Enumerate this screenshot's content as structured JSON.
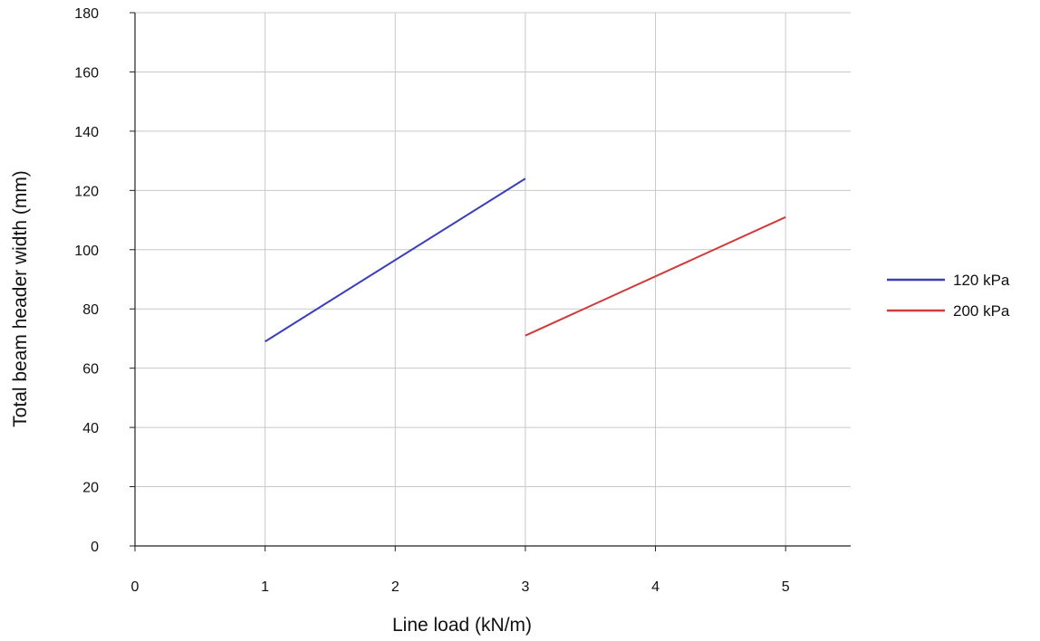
{
  "chart_data": {
    "type": "line",
    "title": "",
    "xlabel": "Line load (kN/m)",
    "ylabel": "Total beam header width (mm)",
    "xlim": [
      0,
      5.5
    ],
    "ylim": [
      0,
      180
    ],
    "xticks": [
      0,
      1,
      2,
      3,
      4,
      5
    ],
    "yticks": [
      0,
      20,
      40,
      60,
      80,
      100,
      120,
      140,
      160,
      180
    ],
    "grid": true,
    "legend_position": "right",
    "series": [
      {
        "name": "120 kPa",
        "color": "#3a3fb8",
        "x": [
          1,
          3
        ],
        "y": [
          69,
          124
        ]
      },
      {
        "name": "200 kPa",
        "color": "#d03a3a",
        "x": [
          3,
          5
        ],
        "y": [
          71,
          111
        ]
      }
    ]
  }
}
